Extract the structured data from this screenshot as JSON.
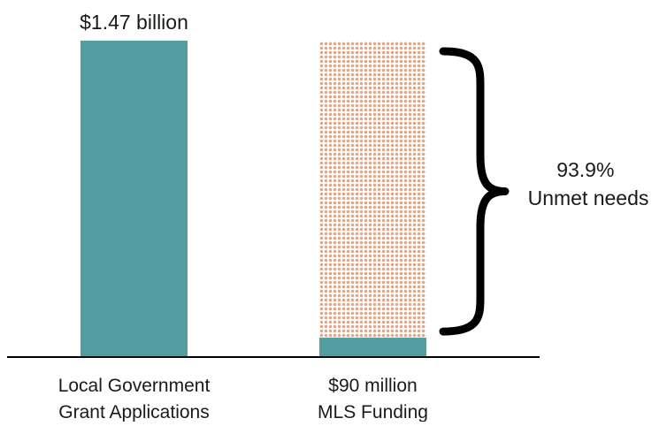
{
  "chart_data": {
    "type": "bar",
    "categories": [
      [
        "Local Government",
        "Grant Applications"
      ],
      [
        "$90 million",
        "MLS Funding"
      ]
    ],
    "bars": [
      {
        "value": 1.47,
        "value_label": "$1.47 billion",
        "unmet": 0
      },
      {
        "value": 0.09,
        "value_label": "",
        "unmet": 1.38
      }
    ],
    "unit": "billion USD",
    "ylim": [
      0,
      1.47
    ],
    "annotation": {
      "lines": [
        "93.9%",
        "Unmet needs"
      ],
      "percent": 93.9
    },
    "colors": {
      "bar": "#539c9f",
      "unmet_dots": "#e0a98a",
      "brace": "#000000",
      "axis": "#000000"
    },
    "grid": false,
    "legend": "none"
  }
}
